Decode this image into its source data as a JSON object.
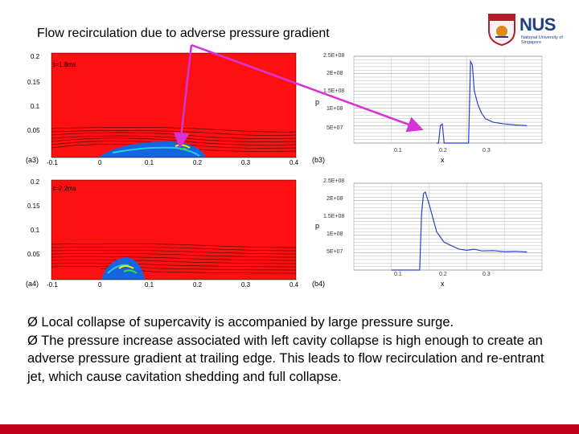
{
  "slide": {
    "title": "Flow recirculation due to adverse pressure gradient",
    "logo": {
      "text": "NUS",
      "subtitle": "National University of Singapore",
      "icon": "nus-crest-icon"
    },
    "accent_color": "#c0001a",
    "bullets": [
      "Ø Local collapse of supercavity is accompanied by large pressure surge.",
      "Ø The pressure increase associated with left cavity collapse is high enough to create an adverse pressure gradient at trailing edge. This leads to flow recirculation and re-entrant jet, which cause cavitation shedding and full collapse."
    ]
  },
  "panels": {
    "a3": {
      "label": "(a3)",
      "time": "t=1.8ms",
      "y_ticks": [
        "0.2",
        "0.15",
        "0.1",
        "0.05"
      ],
      "x_ticks": [
        "-0.1",
        "0",
        "0.1",
        "0.2",
        "0.3",
        "0.4"
      ]
    },
    "a4": {
      "label": "(a4)",
      "time": "t=2.2ms",
      "y_ticks": [
        "0.2",
        "0.15",
        "0.1",
        "0.05"
      ],
      "x_ticks": [
        "-0.1",
        "0",
        "0.1",
        "0.2",
        "0.3",
        "0.4"
      ]
    },
    "b3": {
      "label": "(b3)",
      "y_ticks": [
        "2.5E+08",
        "2E+08",
        "1.5E+08",
        "1E+08",
        "5E+07"
      ],
      "x_ticks": [
        "0.1",
        "0.2",
        "0.3"
      ],
      "xlabel": "x",
      "ylabel": "p"
    },
    "b4": {
      "label": "(b4)",
      "y_ticks": [
        "2.5E+08",
        "2E+08",
        "1.5E+08",
        "1E+08",
        "5E+07"
      ],
      "x_ticks": [
        "0.1",
        "0.2",
        "0.3"
      ],
      "xlabel": "x",
      "ylabel": "p"
    }
  },
  "chart_data": [
    {
      "type": "line",
      "panel": "b3",
      "xlabel": "x",
      "ylabel": "p",
      "xlim": [
        -0.1,
        0.4
      ],
      "ylim": [
        0,
        250000000.0
      ],
      "grid": true,
      "x": [
        0.12,
        0.125,
        0.13,
        0.135,
        0.14,
        0.145,
        0.15,
        0.155,
        0.16,
        0.2,
        0.205,
        0.21,
        0.215,
        0.22,
        0.23,
        0.24,
        0.25,
        0.27,
        0.3,
        0.33,
        0.36
      ],
      "y": [
        0,
        0,
        50000000.0,
        55000000.0,
        0,
        0,
        0,
        0,
        0,
        0,
        0,
        235000000.0,
        225000000.0,
        150000000.0,
        110000000.0,
        85000000.0,
        70000000.0,
        60000000.0,
        55000000.0,
        52000000.0,
        50000000.0
      ]
    },
    {
      "type": "line",
      "panel": "b4",
      "xlabel": "x",
      "ylabel": "p",
      "xlim": [
        -0.1,
        0.4
      ],
      "ylim": [
        0,
        250000000.0
      ],
      "grid": true,
      "x": [
        0.0,
        0.05,
        0.075,
        0.08,
        0.085,
        0.09,
        0.1,
        0.11,
        0.12,
        0.14,
        0.16,
        0.18,
        0.2,
        0.22,
        0.24,
        0.27,
        0.3,
        0.33,
        0.36
      ],
      "y": [
        0,
        0,
        0,
        160000000.0,
        220000000.0,
        225000000.0,
        190000000.0,
        150000000.0,
        110000000.0,
        80000000.0,
        70000000.0,
        60000000.0,
        57000000.0,
        60000000.0,
        55000000.0,
        56000000.0,
        53000000.0,
        54000000.0,
        52000000.0
      ]
    }
  ]
}
